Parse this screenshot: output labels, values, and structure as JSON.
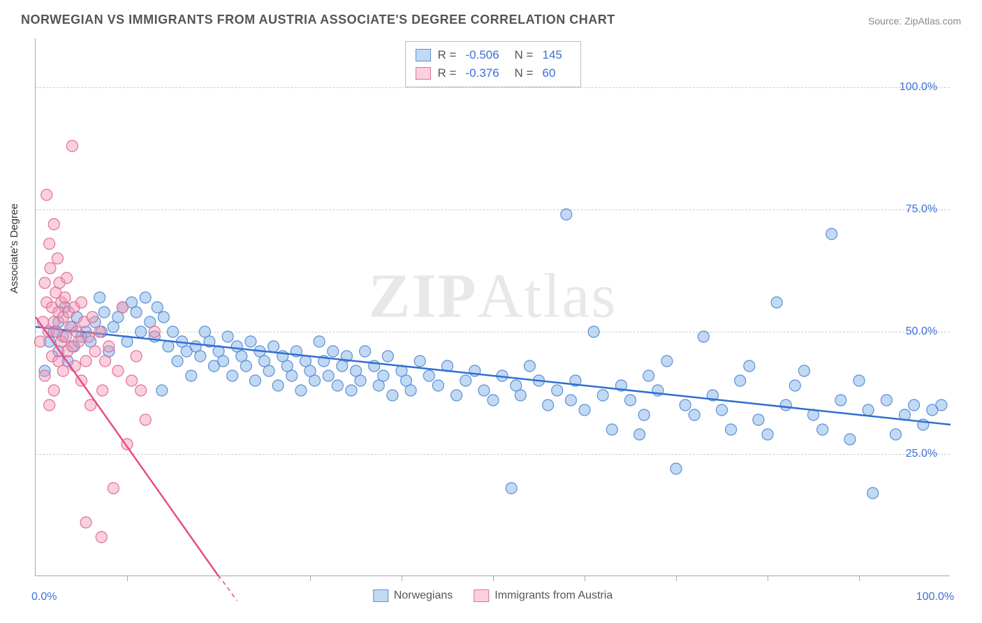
{
  "title": "NORWEGIAN VS IMMIGRANTS FROM AUSTRIA ASSOCIATE'S DEGREE CORRELATION CHART",
  "source": "Source: ZipAtlas.com",
  "watermark": "ZIPAtlas",
  "y_axis_label": "Associate's Degree",
  "chart": {
    "type": "scatter",
    "xlim": [
      0,
      100
    ],
    "ylim": [
      0,
      110
    ],
    "y_ticks": [
      25,
      50,
      75,
      100
    ],
    "y_tick_labels": [
      "25.0%",
      "50.0%",
      "75.0%",
      "100.0%"
    ],
    "x_tick_positions": [
      10,
      20,
      30,
      40,
      50,
      60,
      70,
      80,
      90
    ],
    "x_min_label": "0.0%",
    "x_max_label": "100.0%",
    "background_color": "#ffffff",
    "grid_color": "#cccccc",
    "marker_radius": 8,
    "marker_stroke_width": 1.2,
    "line_width": 2.5,
    "series": [
      {
        "name": "Norwegians",
        "fill_color": "rgba(120,170,230,0.45)",
        "stroke_color": "#5a8fd6",
        "line_color": "#2f6fd0",
        "R": "-0.506",
        "N": "145",
        "trend": {
          "x1": 0,
          "y1": 51,
          "x2": 100,
          "y2": 31
        },
        "points": [
          [
            1,
            42
          ],
          [
            1.5,
            48
          ],
          [
            2,
            50
          ],
          [
            2.5,
            46
          ],
          [
            2.5,
            52
          ],
          [
            3,
            49
          ],
          [
            3.2,
            55
          ],
          [
            3.5,
            44
          ],
          [
            4,
            51
          ],
          [
            4.2,
            47
          ],
          [
            4.5,
            53
          ],
          [
            5,
            49
          ],
          [
            5.5,
            50
          ],
          [
            6,
            48
          ],
          [
            6.5,
            52
          ],
          [
            7,
            57
          ],
          [
            7.2,
            50
          ],
          [
            7.5,
            54
          ],
          [
            8,
            46
          ],
          [
            8.5,
            51
          ],
          [
            9,
            53
          ],
          [
            9.5,
            55
          ],
          [
            10,
            48
          ],
          [
            10.5,
            56
          ],
          [
            11,
            54
          ],
          [
            11.5,
            50
          ],
          [
            12,
            57
          ],
          [
            12.5,
            52
          ],
          [
            13,
            49
          ],
          [
            13.3,
            55
          ],
          [
            13.8,
            38
          ],
          [
            14,
            53
          ],
          [
            14.5,
            47
          ],
          [
            15,
            50
          ],
          [
            15.5,
            44
          ],
          [
            16,
            48
          ],
          [
            16.5,
            46
          ],
          [
            17,
            41
          ],
          [
            17.5,
            47
          ],
          [
            18,
            45
          ],
          [
            18.5,
            50
          ],
          [
            19,
            48
          ],
          [
            19.5,
            43
          ],
          [
            20,
            46
          ],
          [
            20.5,
            44
          ],
          [
            21,
            49
          ],
          [
            21.5,
            41
          ],
          [
            22,
            47
          ],
          [
            22.5,
            45
          ],
          [
            23,
            43
          ],
          [
            23.5,
            48
          ],
          [
            24,
            40
          ],
          [
            24.5,
            46
          ],
          [
            25,
            44
          ],
          [
            25.5,
            42
          ],
          [
            26,
            47
          ],
          [
            26.5,
            39
          ],
          [
            27,
            45
          ],
          [
            27.5,
            43
          ],
          [
            28,
            41
          ],
          [
            28.5,
            46
          ],
          [
            29,
            38
          ],
          [
            29.5,
            44
          ],
          [
            30,
            42
          ],
          [
            30.5,
            40
          ],
          [
            31,
            48
          ],
          [
            31.5,
            44
          ],
          [
            32,
            41
          ],
          [
            32.5,
            46
          ],
          [
            33,
            39
          ],
          [
            33.5,
            43
          ],
          [
            34,
            45
          ],
          [
            34.5,
            38
          ],
          [
            35,
            42
          ],
          [
            35.5,
            40
          ],
          [
            36,
            46
          ],
          [
            37,
            43
          ],
          [
            37.5,
            39
          ],
          [
            38,
            41
          ],
          [
            38.5,
            45
          ],
          [
            39,
            37
          ],
          [
            40,
            42
          ],
          [
            40.5,
            40
          ],
          [
            41,
            38
          ],
          [
            42,
            44
          ],
          [
            43,
            41
          ],
          [
            44,
            39
          ],
          [
            45,
            43
          ],
          [
            46,
            37
          ],
          [
            47,
            40
          ],
          [
            48,
            42
          ],
          [
            49,
            38
          ],
          [
            50,
            36
          ],
          [
            51,
            41
          ],
          [
            52,
            18
          ],
          [
            52.5,
            39
          ],
          [
            53,
            37
          ],
          [
            54,
            43
          ],
          [
            55,
            40
          ],
          [
            56,
            35
          ],
          [
            57,
            38
          ],
          [
            58,
            74
          ],
          [
            58.5,
            36
          ],
          [
            59,
            40
          ],
          [
            60,
            34
          ],
          [
            61,
            50
          ],
          [
            62,
            37
          ],
          [
            63,
            30
          ],
          [
            64,
            39
          ],
          [
            65,
            36
          ],
          [
            66,
            29
          ],
          [
            66.5,
            33
          ],
          [
            67,
            41
          ],
          [
            68,
            38
          ],
          [
            69,
            44
          ],
          [
            70,
            22
          ],
          [
            71,
            35
          ],
          [
            72,
            33
          ],
          [
            73,
            49
          ],
          [
            74,
            37
          ],
          [
            75,
            34
          ],
          [
            76,
            30
          ],
          [
            77,
            40
          ],
          [
            78,
            43
          ],
          [
            79,
            32
          ],
          [
            80,
            29
          ],
          [
            81,
            56
          ],
          [
            82,
            35
          ],
          [
            83,
            39
          ],
          [
            84,
            42
          ],
          [
            85,
            33
          ],
          [
            86,
            30
          ],
          [
            87,
            70
          ],
          [
            88,
            36
          ],
          [
            89,
            28
          ],
          [
            90,
            40
          ],
          [
            91,
            34
          ],
          [
            91.5,
            17
          ],
          [
            93,
            36
          ],
          [
            94,
            29
          ],
          [
            95,
            33
          ],
          [
            96,
            35
          ],
          [
            97,
            31
          ],
          [
            98,
            34
          ],
          [
            99,
            35
          ]
        ]
      },
      {
        "name": "Immigrants from Austria",
        "fill_color": "rgba(245,150,180,0.45)",
        "stroke_color": "#e06f9a",
        "line_color": "#e94b86",
        "R": "-0.376",
        "N": "60",
        "trend": {
          "x1": 0,
          "y1": 53,
          "x2": 20,
          "y2": 0
        },
        "trend_dashed_extension": {
          "x1": 17.5,
          "y1": 6.6,
          "x2": 22,
          "y2": -5
        },
        "points": [
          [
            0.5,
            48
          ],
          [
            0.8,
            52
          ],
          [
            1,
            60
          ],
          [
            1,
            41
          ],
          [
            1.2,
            56
          ],
          [
            1.2,
            78
          ],
          [
            1.4,
            50
          ],
          [
            1.5,
            68
          ],
          [
            1.5,
            35
          ],
          [
            1.6,
            63
          ],
          [
            1.8,
            55
          ],
          [
            1.8,
            45
          ],
          [
            2,
            72
          ],
          [
            2,
            52
          ],
          [
            2,
            38
          ],
          [
            2.2,
            58
          ],
          [
            2.3,
            50
          ],
          [
            2.4,
            65
          ],
          [
            2.5,
            54
          ],
          [
            2.5,
            44
          ],
          [
            2.6,
            60
          ],
          [
            2.8,
            48
          ],
          [
            2.8,
            56
          ],
          [
            3,
            53
          ],
          [
            3,
            42
          ],
          [
            3.2,
            57
          ],
          [
            3.3,
            49
          ],
          [
            3.4,
            61
          ],
          [
            3.5,
            46
          ],
          [
            3.6,
            54
          ],
          [
            3.8,
            51
          ],
          [
            4,
            88
          ],
          [
            4,
            47
          ],
          [
            4.2,
            55
          ],
          [
            4.3,
            43
          ],
          [
            4.5,
            50
          ],
          [
            4.7,
            48
          ],
          [
            5,
            56
          ],
          [
            5,
            40
          ],
          [
            5.3,
            52
          ],
          [
            5.5,
            44
          ],
          [
            5.8,
            49
          ],
          [
            6,
            35
          ],
          [
            6.2,
            53
          ],
          [
            6.5,
            46
          ],
          [
            7,
            50
          ],
          [
            7.3,
            38
          ],
          [
            7.6,
            44
          ],
          [
            8,
            47
          ],
          [
            8.5,
            18
          ],
          [
            9,
            42
          ],
          [
            9.5,
            55
          ],
          [
            10,
            27
          ],
          [
            10.5,
            40
          ],
          [
            11,
            45
          ],
          [
            11.5,
            38
          ],
          [
            12,
            32
          ],
          [
            13,
            50
          ],
          [
            5.5,
            11
          ],
          [
            7.2,
            8
          ]
        ]
      }
    ]
  },
  "legend_bottom": [
    {
      "label": "Norwegians",
      "series_idx": 0
    },
    {
      "label": "Immigrants from Austria",
      "series_idx": 1
    }
  ]
}
